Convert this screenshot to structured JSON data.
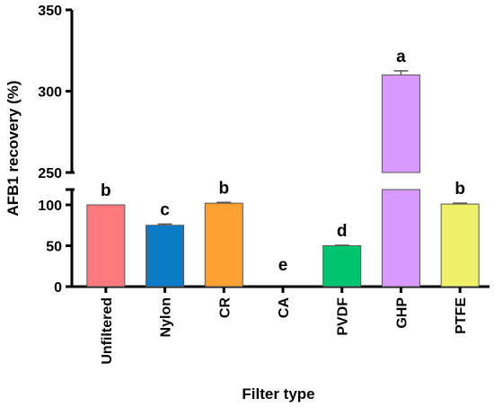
{
  "chart_data": {
    "type": "bar",
    "xlabel": "Filter type",
    "ylabel": "AFB1 recovery (%)",
    "categories": [
      "Unfiltered",
      "Nylon",
      "CR",
      "CA",
      "PVDF",
      "GHP",
      "PTFE"
    ],
    "values": [
      100,
      75,
      102,
      0,
      50,
      310,
      101
    ],
    "errors": [
      0,
      1.5,
      1,
      0,
      0.5,
      2.5,
      1
    ],
    "significance_letters": [
      "b",
      "c",
      "b",
      "e",
      "d",
      "a",
      "b"
    ],
    "colors": [
      "#FF7A7F",
      "#0A7BC6",
      "#FFA033",
      "#7FB3D5",
      "#00C46F",
      "#D99AFF",
      "#EEF06A"
    ],
    "y_axis_break": {
      "lower_segment": {
        "range": [
          0,
          120
        ],
        "ticks": [
          "0",
          "50",
          "100"
        ]
      },
      "upper_segment": {
        "range": [
          250,
          350
        ],
        "ticks": [
          "250",
          "300",
          "350"
        ]
      }
    },
    "grid": false,
    "legend": "none"
  }
}
